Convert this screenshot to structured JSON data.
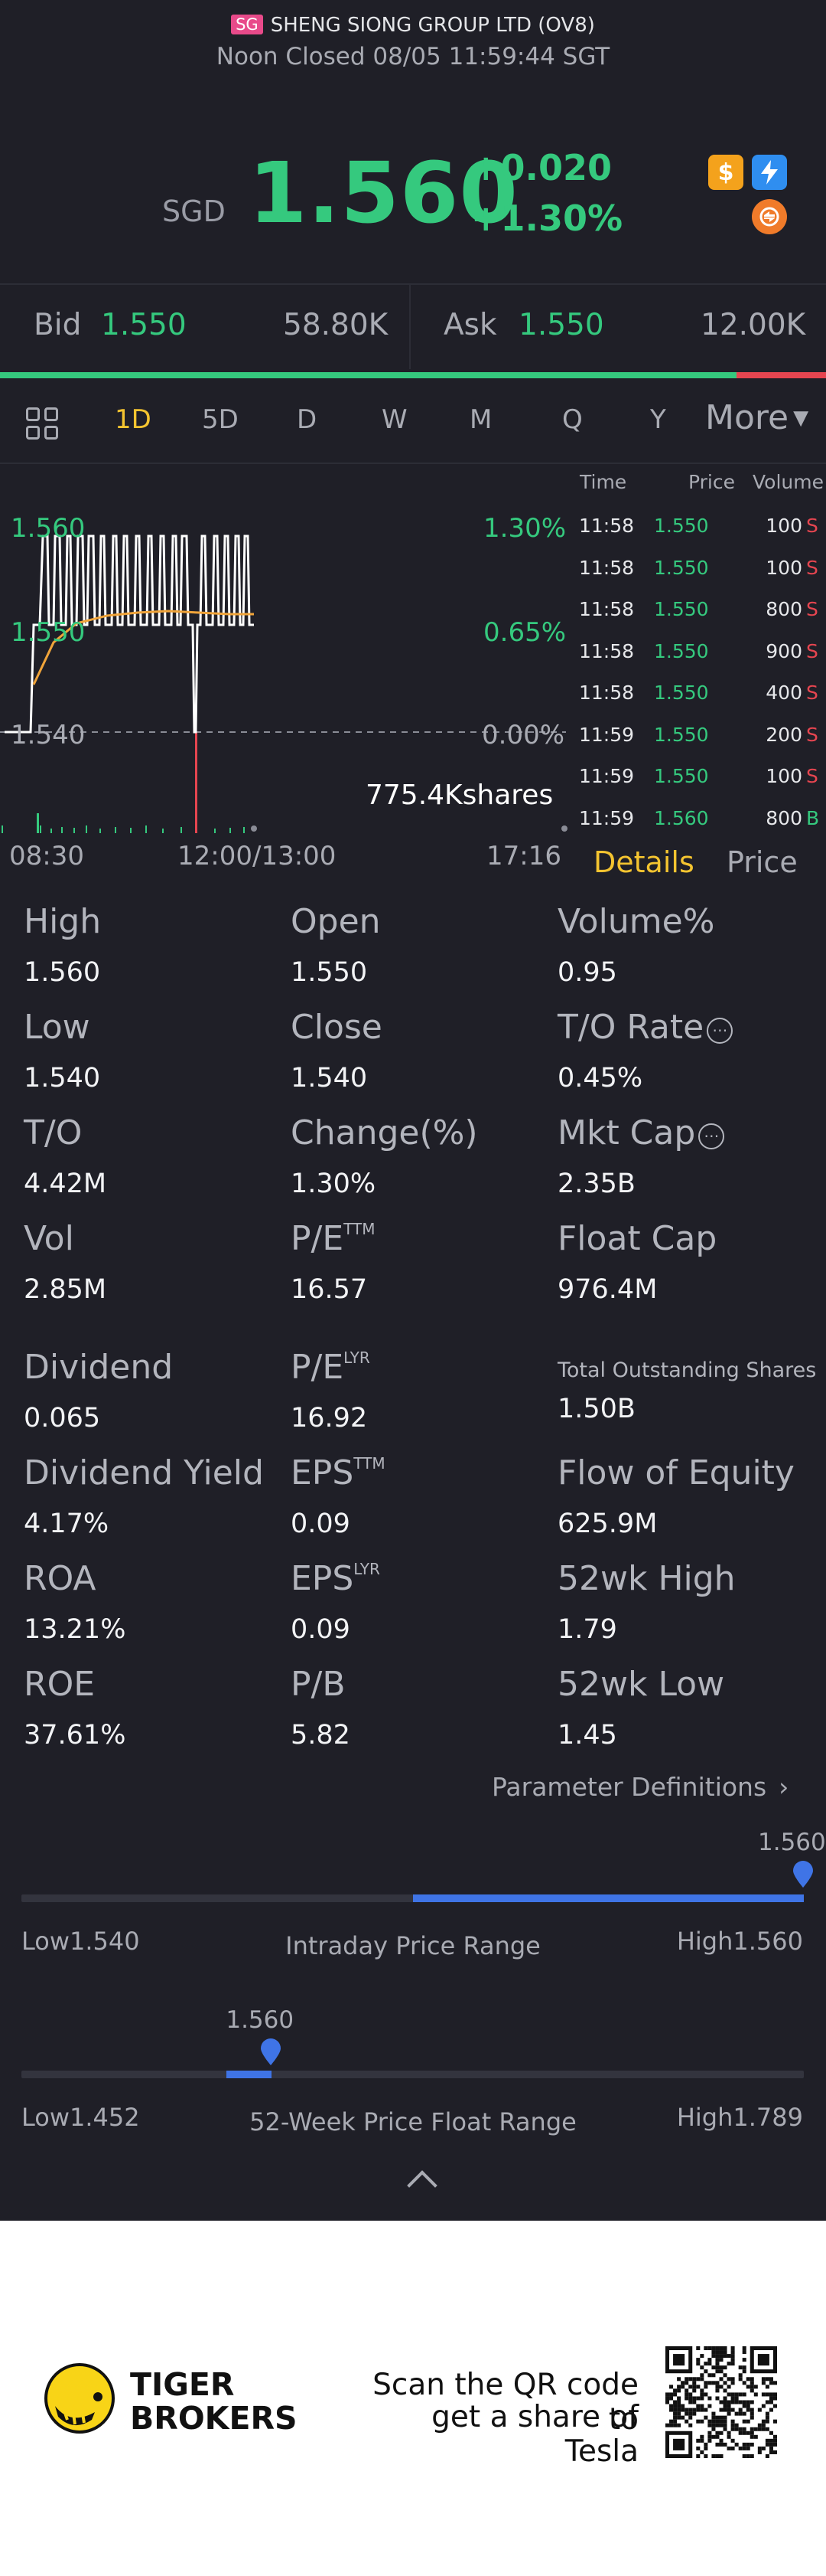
{
  "header": {
    "market_badge": "SG",
    "title": "SHENG SIONG GROUP LTD (OV8)",
    "status": "Noon Closed 08/05 11:59:44 SGT"
  },
  "quote": {
    "currency": "SGD",
    "price": "1.560",
    "change": "+0.020",
    "change_pct": "+1.30%",
    "up_color": "#35c97e",
    "down_color": "#e64550",
    "icons": [
      "dollar-icon",
      "lightning-icon",
      "swap-icon"
    ]
  },
  "bid_ask": {
    "bid_label": "Bid",
    "bid_price": "1.550",
    "bid_volume": "58.80K",
    "ask_label": "Ask",
    "ask_price": "1.550",
    "ask_volume": "12.00K",
    "bid_ratio": 0.89
  },
  "periods": {
    "items": [
      "1D",
      "5D",
      "D",
      "W",
      "M",
      "Q",
      "Y"
    ],
    "active": "1D",
    "more": "More"
  },
  "chart": {
    "y_labels": [
      "1.560",
      "1.550",
      "1.540"
    ],
    "pct_labels": [
      "1.30%",
      "0.65%",
      "0.00%"
    ],
    "volume_label": "775.4Kshares",
    "x_labels": [
      "08:30",
      "12:00/13:00",
      "17:16"
    ]
  },
  "chart_data": {
    "type": "line",
    "x_axis": [
      "08:30",
      "12:00/13:00",
      "17:16"
    ],
    "ylim": [
      1.54,
      1.56
    ],
    "reference_price": 1.54,
    "series": [],
    "annotations": [
      "775.4Kshares"
    ]
  },
  "trades": {
    "headers": [
      "Time",
      "Price",
      "Volume"
    ],
    "rows": [
      {
        "time": "11:58",
        "price": "1.550",
        "volume": "100",
        "side": "S"
      },
      {
        "time": "11:58",
        "price": "1.550",
        "volume": "100",
        "side": "S"
      },
      {
        "time": "11:58",
        "price": "1.550",
        "volume": "800",
        "side": "S"
      },
      {
        "time": "11:58",
        "price": "1.550",
        "volume": "900",
        "side": "S"
      },
      {
        "time": "11:58",
        "price": "1.550",
        "volume": "400",
        "side": "S"
      },
      {
        "time": "11:59",
        "price": "1.550",
        "volume": "200",
        "side": "S"
      },
      {
        "time": "11:59",
        "price": "1.550",
        "volume": "100",
        "side": "S"
      },
      {
        "time": "11:59",
        "price": "1.560",
        "volume": "800",
        "side": "B"
      }
    ]
  },
  "tabs": {
    "details": "Details",
    "price": "Price"
  },
  "stats": {
    "high_label": "High",
    "high": "1.560",
    "open_label": "Open",
    "open": "1.550",
    "volume_pct_label": "Volume%",
    "volume_pct": "0.95",
    "low_label": "Low",
    "low": "1.540",
    "close_label": "Close",
    "close": "1.540",
    "to_rate_label": "T/O Rate",
    "to_rate": "0.45%",
    "to_label": "T/O",
    "to": "4.42M",
    "change_pct_label": "Change(%)",
    "change_pct": "1.30%",
    "mkt_cap_label": "Mkt Cap",
    "mkt_cap": "2.35B",
    "vol_label": "Vol",
    "vol": "2.85M",
    "pe_ttm_label": "P/E",
    "pe_ttm_sup": "TTM",
    "pe_ttm": "16.57",
    "float_cap_label": "Float Cap",
    "float_cap": "976.4M",
    "dividend_label": "Dividend",
    "dividend": "0.065",
    "pe_lyr_label": "P/E",
    "pe_lyr_sup": "LYR",
    "pe_lyr": "16.92",
    "total_shares_label": "Total Outstanding Shares",
    "total_shares": "1.50B",
    "div_yield_label": "Dividend Yield",
    "div_yield": "4.17%",
    "eps_ttm_label": "EPS",
    "eps_ttm_sup": "TTM",
    "eps_ttm": "0.09",
    "flow_equity_label": "Flow of Equity",
    "flow_equity": "625.9M",
    "roa_label": "ROA",
    "roa": "13.21%",
    "eps_lyr_label": "EPS",
    "eps_lyr_sup": "LYR",
    "eps_lyr": "0.09",
    "wk52_high_label": "52wk High",
    "wk52_high": "1.79",
    "roe_label": "ROE",
    "roe": "37.61%",
    "pb_label": "P/B",
    "pb": "5.82",
    "wk52_low_label": "52wk Low",
    "wk52_low": "1.45",
    "info_icon": "⋯"
  },
  "param_definitions": "Parameter Definitions",
  "intraday_range": {
    "current": "1.560",
    "low": "Low1.540",
    "high": "High1.560",
    "title": "Intraday Price Range",
    "position": 1.0
  },
  "week52_range": {
    "current": "1.560",
    "low": "Low1.452",
    "high": "High1.789",
    "title": "52-Week Price Float Range",
    "position": 0.32
  },
  "footer": {
    "brand_line1": "TIGER",
    "brand_line2": "BROKERS",
    "qr_line1": "Scan the QR code to",
    "qr_line2": "get a share of Tesla"
  }
}
